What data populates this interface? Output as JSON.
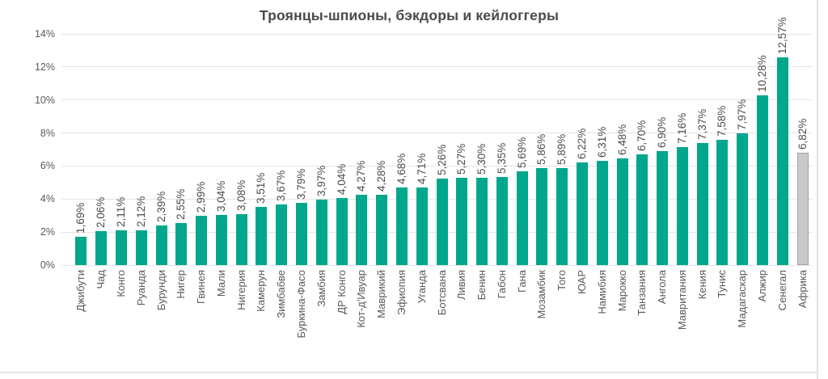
{
  "page": {
    "background": "#FFFFFF"
  },
  "chart_data": {
    "type": "bar",
    "title": "Троянцы-шпионы, бэкдоры и кейлоггеры",
    "xlabel": "",
    "ylabel": "",
    "ylim": [
      0,
      14
    ],
    "ytick_step": 2,
    "yticks": [
      "0%",
      "2%",
      "4%",
      "6%",
      "8%",
      "10%",
      "12%",
      "14%"
    ],
    "grid": true,
    "legend": false,
    "categories": [
      "Джибути",
      "Чад",
      "Конго",
      "Руанда",
      "Бурунди",
      "Нигер",
      "Гвинея",
      "Мали",
      "Нигерия",
      "Камерун",
      "Зимбабве",
      "Буркина-Фасо",
      "Замбия",
      "ДР Конго",
      "Кот-д'Ивуар",
      "Маврикий",
      "Эфиопия",
      "Уганда",
      "Ботсвана",
      "Ливия",
      "Бенин",
      "Габон",
      "Гана",
      "Мозамбик",
      "Того",
      "ЮАР",
      "Намибия",
      "Марокко",
      "Танзания",
      "Ангола",
      "Мавритания",
      "Кения",
      "Тунис",
      "Мадагаскар",
      "Алжир",
      "Сенегал",
      "Африка"
    ],
    "values": [
      1.69,
      2.06,
      2.11,
      2.12,
      2.39,
      2.55,
      2.99,
      3.04,
      3.08,
      3.51,
      3.67,
      3.79,
      3.97,
      4.04,
      4.27,
      4.28,
      4.68,
      4.71,
      5.26,
      5.27,
      5.3,
      5.35,
      5.69,
      5.86,
      5.89,
      6.22,
      6.31,
      6.48,
      6.7,
      6.9,
      7.16,
      7.37,
      7.58,
      7.97,
      10.28,
      12.57,
      6.82
    ],
    "value_labels": [
      "1,69%",
      "2,06%",
      "2,11%",
      "2,12%",
      "2,39%",
      "2,55%",
      "2,99%",
      "3,04%",
      "3,08%",
      "3,51%",
      "3,67%",
      "3,79%",
      "3,97%",
      "4,04%",
      "4,27%",
      "4,28%",
      "4,68%",
      "4,71%",
      "5,26%",
      "5,27%",
      "5,30%",
      "5,35%",
      "5,69%",
      "5,86%",
      "5,89%",
      "6,22%",
      "6,31%",
      "6,48%",
      "6,70%",
      "6,90%",
      "7,16%",
      "7,37%",
      "7,58%",
      "7,97%",
      "10,28%",
      "12,57%",
      "6,82%"
    ],
    "highlight_category": "Африка",
    "colors": {
      "bar": "#00A78C",
      "highlight_bar_fill": "#C9C9C9",
      "highlight_bar_border": "#A3A3A3",
      "title_text": "#4A4A4A",
      "value_label_text": "#4D4D4D",
      "axis_text": "#595959",
      "gridline": "#E5E5E5",
      "page_edge": "#E2E2E2"
    }
  }
}
